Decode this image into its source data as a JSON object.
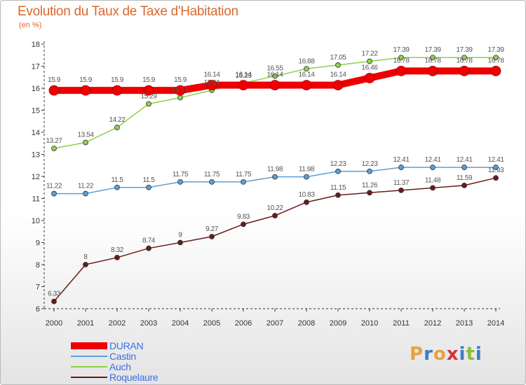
{
  "header": {
    "title": "Evolution du Taux de Taxe d'Habitation",
    "unit": "(en %)"
  },
  "logo": {
    "text": "Proxiti",
    "colors": [
      "#e8a23c",
      "#3a7cc9",
      "#e8a23c",
      "#d8312e",
      "#3a7cc9",
      "#8bbd3a",
      "#3a7cc9"
    ]
  },
  "chart_data": {
    "type": "line",
    "title": "Evolution du Taux de Taxe d'Habitation",
    "ylabel": "(en %)",
    "x": [
      "2000",
      "2001",
      "2002",
      "2003",
      "2004",
      "2005",
      "2006",
      "2007",
      "2008",
      "2009",
      "2010",
      "2011",
      "2012",
      "2013",
      "2014"
    ],
    "ylim": [
      6,
      18
    ],
    "yticks": [
      "6",
      "7",
      "8",
      "9",
      "10",
      "11",
      "12",
      "13",
      "14",
      "15",
      "16",
      "17",
      "18"
    ],
    "grid": false,
    "legend_position": "bottom-left",
    "series": [
      {
        "name": "DURAN",
        "color": "#ee0000",
        "width": 10,
        "values": [
          15.9,
          15.9,
          15.9,
          15.9,
          15.9,
          16.14,
          16.14,
          16.14,
          16.14,
          16.14,
          16.46,
          16.78,
          16.78,
          16.78,
          16.78
        ],
        "labels": [
          "15.9",
          "15.9",
          "15.9",
          "15.9",
          "15.9",
          "16.14",
          "16.14",
          "16.14",
          "16.14",
          "16.14",
          "16.46",
          "16.78",
          "16.78",
          "16.78",
          "16.78"
        ]
      },
      {
        "name": "Castin",
        "color": "#5c9ed6",
        "width": 1.5,
        "values": [
          11.22,
          11.22,
          11.5,
          11.5,
          11.75,
          11.75,
          11.75,
          11.98,
          11.98,
          12.23,
          12.23,
          12.41,
          12.41,
          12.41,
          12.41
        ],
        "labels": [
          "11.22",
          "11.22",
          "11.5",
          "11.5",
          "11.75",
          "11.75",
          "11.75",
          "11.98",
          "11.98",
          "12.23",
          "12.23",
          "12.41",
          "12.41",
          "12.41",
          "12.41"
        ]
      },
      {
        "name": "Auch",
        "color": "#8ed14a",
        "width": 1.5,
        "values": [
          13.27,
          13.54,
          14.22,
          15.29,
          15.57,
          15.91,
          16.23,
          16.55,
          16.88,
          17.05,
          17.22,
          17.39,
          17.39,
          17.39,
          17.39
        ],
        "labels": [
          "13.27",
          "13.54",
          "14.22",
          "15.29",
          "15.57",
          "15.91",
          "16.23",
          "16.55",
          "16.88",
          "17.05",
          "17.22",
          "17.39",
          "17.39",
          "17.39",
          "17.39"
        ]
      },
      {
        "name": "Roquelaure",
        "color": "#6b1a1a",
        "width": 1.5,
        "values": [
          6.33,
          8,
          8.32,
          8.74,
          9,
          9.27,
          9.83,
          10.22,
          10.83,
          11.15,
          11.26,
          11.37,
          11.48,
          11.59,
          11.93
        ],
        "labels": [
          "6.33",
          "8",
          "8.32",
          "8.74",
          "9",
          "9.27",
          "9.83",
          "10.22",
          "10.83",
          "11.15",
          "11.26",
          "11.37",
          "11.48",
          "11.59",
          "11.93"
        ]
      }
    ]
  }
}
